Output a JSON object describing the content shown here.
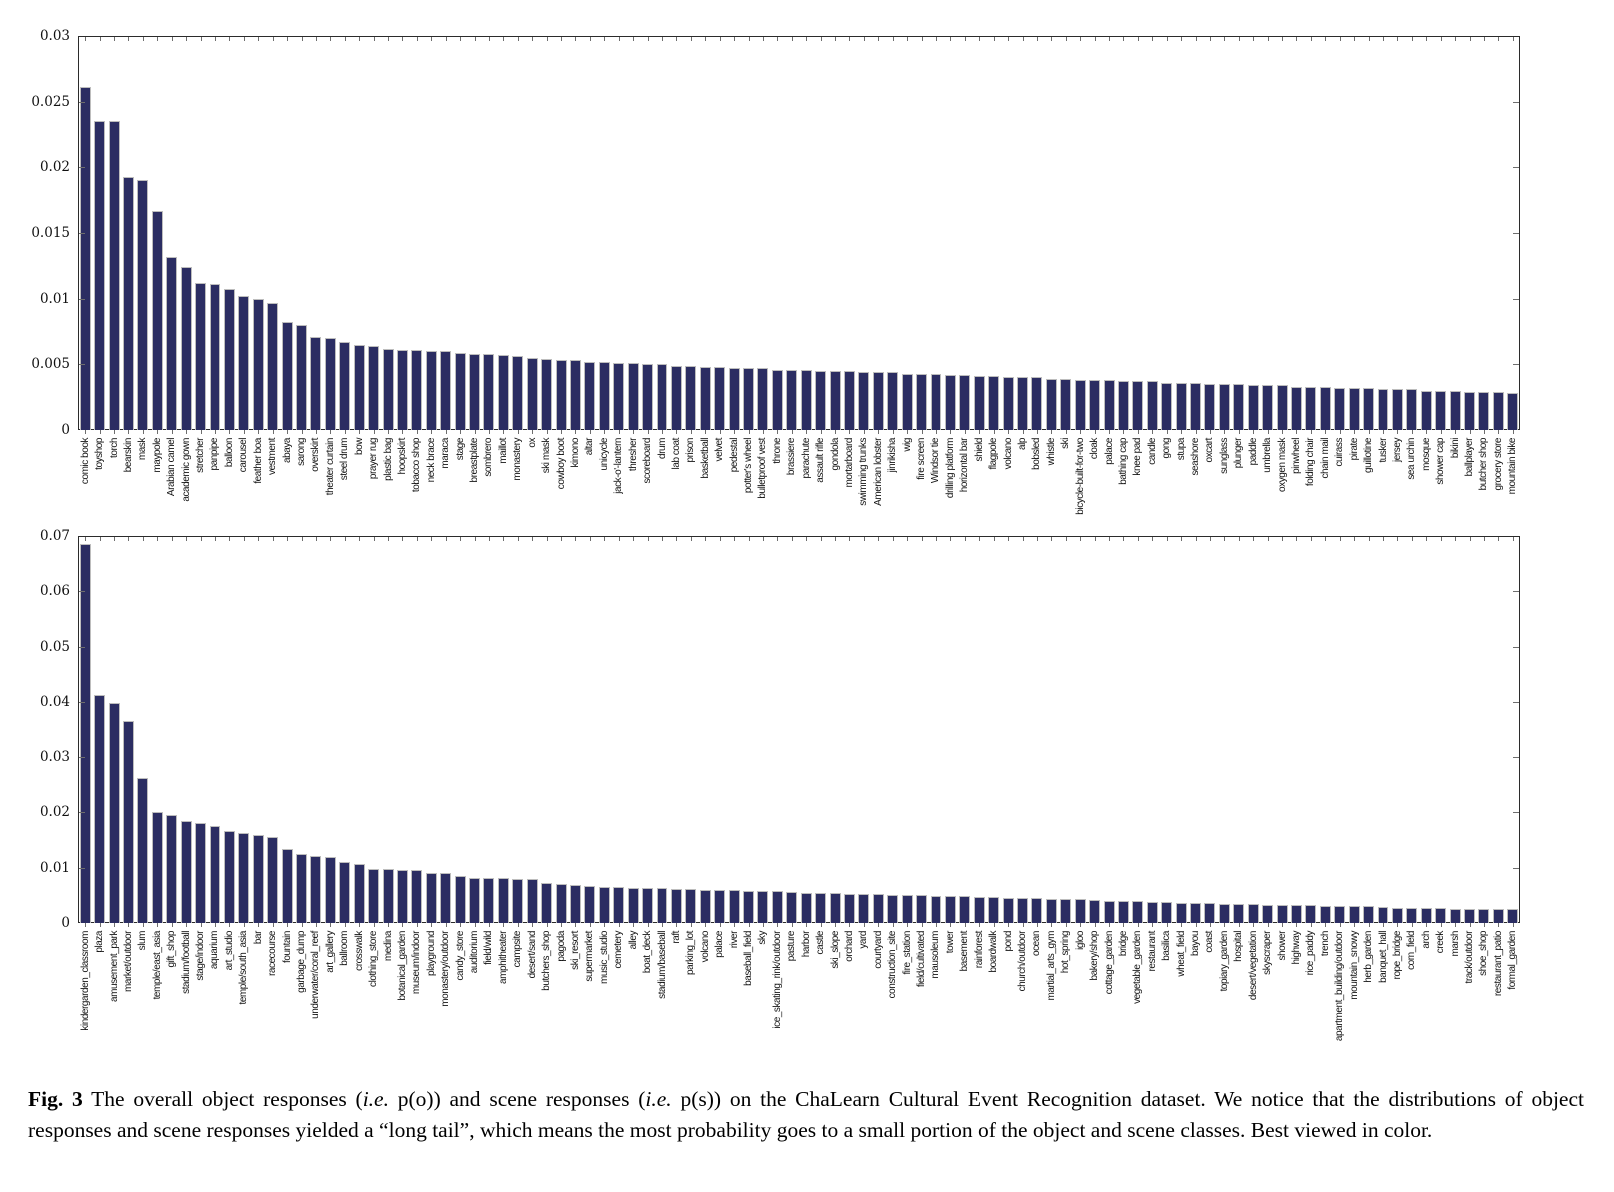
{
  "figure": {
    "caption_parts": [
      {
        "text": "Fig. 3",
        "style": "b"
      },
      {
        "text": "  The overall object responses (",
        "style": ""
      },
      {
        "text": "i.e.",
        "style": "i"
      },
      {
        "text": " p(o)) and scene responses (",
        "style": ""
      },
      {
        "text": "i.e.",
        "style": "i"
      },
      {
        "text": " p(s)) on the ChaLearn Cultural Event Recognition dataset. We notice that the distributions of object responses and scene responses yielded a “long tail”, which means the most probability goes to a small portion of the object and scene classes. Best viewed in color.",
        "style": ""
      }
    ]
  },
  "chart_data": [
    {
      "type": "bar",
      "title": "",
      "xlabel": "",
      "ylabel": "",
      "legend": "none",
      "grid": false,
      "ylim": [
        0,
        0.03
      ],
      "ytick_labels": [
        "0",
        "0.005",
        "0.01",
        "0.015",
        "0.02",
        "0.025",
        "0.03"
      ],
      "bar_color": "#2b2d62",
      "edge_color": "#bdbdbd",
      "categories": [
        "comic book",
        "toyshop",
        "torch",
        "bearskin",
        "mask",
        "maypole",
        "Arabian camel",
        "academic gown",
        "stretcher",
        "panpipe",
        "balloon",
        "carousel",
        "feather boa",
        "vestment",
        "abaya",
        "sarong",
        "overskirt",
        "theater curtain",
        "steel drum",
        "bow",
        "prayer rug",
        "plastic bag",
        "hoopskirt",
        "tobacco shop",
        "neck brace",
        "maraca",
        "stage",
        "breastplate",
        "sombrero",
        "maillot",
        "monastery",
        "ox",
        "ski mask",
        "cowboy boot",
        "kimono",
        "altar",
        "unicycle",
        "jack-o'-lantern",
        "thresher",
        "scoreboard",
        "drum",
        "lab coat",
        "prison",
        "basketball",
        "velvet",
        "pedestal",
        "potter's wheel",
        "bulletproof vest",
        "throne",
        "brassiere",
        "parachute",
        "assault rifle",
        "gondola",
        "mortarboard",
        "swimming trunks",
        "American lobster",
        "jinrikisha",
        "wig",
        "fire screen",
        "Windsor tie",
        "drilling platform",
        "horizontal bar",
        "shield",
        "flagpole",
        "volcano",
        "alp",
        "bobsled",
        "whistle",
        "ski",
        "bicycle-built-for-two",
        "cloak",
        "palace",
        "bathing cap",
        "knee pad",
        "candle",
        "gong",
        "stupa",
        "seashore",
        "oxcart",
        "sunglass",
        "plunger",
        "paddle",
        "umbrella",
        "oxygen mask",
        "pinwheel",
        "folding chair",
        "chain mail",
        "cuirass",
        "pirate",
        "guillotine",
        "tusker",
        "jersey",
        "sea urchin",
        "mosque",
        "shower cap",
        "bikini",
        "ballplayer",
        "butcher shop",
        "grocery store",
        "mountain bike"
      ],
      "values": [
        0.0261,
        0.0235,
        0.0235,
        0.0193,
        0.019,
        0.0167,
        0.0132,
        0.0124,
        0.0112,
        0.0111,
        0.0107,
        0.0102,
        0.01,
        0.0097,
        0.0082,
        0.008,
        0.0071,
        0.007,
        0.0067,
        0.0065,
        0.0064,
        0.0062,
        0.0061,
        0.0061,
        0.006,
        0.006,
        0.0059,
        0.0058,
        0.0058,
        0.0057,
        0.0056,
        0.0055,
        0.0054,
        0.0053,
        0.0053,
        0.0052,
        0.0052,
        0.0051,
        0.0051,
        0.005,
        0.005,
        0.0049,
        0.0049,
        0.0048,
        0.0048,
        0.0047,
        0.0047,
        0.0047,
        0.0046,
        0.0046,
        0.0046,
        0.0045,
        0.0045,
        0.0045,
        0.0044,
        0.0044,
        0.0044,
        0.0043,
        0.0043,
        0.0043,
        0.0042,
        0.0042,
        0.0041,
        0.0041,
        0.004,
        0.004,
        0.004,
        0.0039,
        0.0039,
        0.0038,
        0.0038,
        0.0038,
        0.0037,
        0.0037,
        0.0037,
        0.0036,
        0.0036,
        0.0036,
        0.0035,
        0.0035,
        0.0035,
        0.0034,
        0.0034,
        0.0034,
        0.0033,
        0.0033,
        0.0033,
        0.0032,
        0.0032,
        0.0032,
        0.0031,
        0.0031,
        0.0031,
        0.003,
        0.003,
        0.003,
        0.0029,
        0.0029,
        0.0029,
        0.0028
      ]
    },
    {
      "type": "bar",
      "title": "",
      "xlabel": "",
      "ylabel": "",
      "legend": "none",
      "grid": false,
      "ylim": [
        0,
        0.07
      ],
      "ytick_labels": [
        "0",
        "0.01",
        "0.02",
        "0.03",
        "0.04",
        "0.05",
        "0.06",
        "0.07"
      ],
      "bar_color": "#2b2d62",
      "edge_color": "#bdbdbd",
      "categories": [
        "kindergarden_classroom",
        "plaza",
        "amusement_park",
        "market/outdoor",
        "slum",
        "temple/east_asia",
        "gift_shop",
        "stadium/football",
        "stage/indoor",
        "aquarium",
        "art_studio",
        "temple/south_asia",
        "bar",
        "racecourse",
        "fountain",
        "garbage_dump",
        "underwater/coral_reef",
        "art_gallery",
        "ballroom",
        "crosswalk",
        "clothing_store",
        "medina",
        "botanical_garden",
        "museum/indoor",
        "playground",
        "monastery/outdoor",
        "candy_store",
        "auditorium",
        "field/wild",
        "amphitheater",
        "campsite",
        "desert/sand",
        "butchers_shop",
        "pagoda",
        "ski_resort",
        "supermarket",
        "music_studio",
        "cemetery",
        "alley",
        "boat_deck",
        "stadium/baseball",
        "raft",
        "parking_lot",
        "volcano",
        "palace",
        "river",
        "baseball_field",
        "sky",
        "ice_skating_rink/outdoor",
        "pasture",
        "harbor",
        "castle",
        "ski_slope",
        "orchard",
        "yard",
        "courtyard",
        "construction_site",
        "fire_station",
        "field/cultivated",
        "mausoleum",
        "tower",
        "basement",
        "rainforest",
        "boardwalk",
        "pond",
        "church/outdoor",
        "ocean",
        "martial_arts_gym",
        "hot_spring",
        "igloo",
        "bakery/shop",
        "cottage_garden",
        "bridge",
        "vegetable_garden",
        "restaurant",
        "basilica",
        "wheat_field",
        "bayou",
        "coast",
        "topiary_garden",
        "hospital",
        "desert/vegetation",
        "skyscraper",
        "shower",
        "highway",
        "rice_paddy",
        "trench",
        "apartment_building/outdoor",
        "mountain_snowy",
        "herb_garden",
        "banquet_hall",
        "rope_bridge",
        "corn_field",
        "arch",
        "creek",
        "marsh",
        "track/outdoor",
        "shoe_shop",
        "restaurant_patio",
        "formal_garden"
      ],
      "values": [
        0.0685,
        0.0413,
        0.0398,
        0.0366,
        0.0263,
        0.02,
        0.0196,
        0.0185,
        0.018,
        0.0176,
        0.0166,
        0.0162,
        0.0159,
        0.0155,
        0.0133,
        0.0124,
        0.0121,
        0.012,
        0.011,
        0.0107,
        0.0098,
        0.0097,
        0.0096,
        0.0095,
        0.0091,
        0.009,
        0.0085,
        0.0082,
        0.0081,
        0.0081,
        0.008,
        0.008,
        0.0072,
        0.007,
        0.0068,
        0.0067,
        0.0066,
        0.0065,
        0.0064,
        0.0063,
        0.0063,
        0.0062,
        0.0061,
        0.006,
        0.0059,
        0.0059,
        0.0058,
        0.0058,
        0.0057,
        0.0056,
        0.0055,
        0.0054,
        0.0054,
        0.0053,
        0.0052,
        0.0052,
        0.0051,
        0.0051,
        0.005,
        0.0049,
        0.0049,
        0.0048,
        0.0047,
        0.0047,
        0.0046,
        0.0045,
        0.0045,
        0.0044,
        0.0043,
        0.0043,
        0.0041,
        0.004,
        0.004,
        0.0039,
        0.0038,
        0.0038,
        0.0037,
        0.0036,
        0.0036,
        0.0035,
        0.0035,
        0.0034,
        0.0033,
        0.0033,
        0.0032,
        0.0032,
        0.0031,
        0.0031,
        0.003,
        0.003,
        0.0029,
        0.0028,
        0.0028,
        0.0027,
        0.0027,
        0.0026,
        0.0026,
        0.0025,
        0.0025,
        0.0025
      ]
    }
  ]
}
